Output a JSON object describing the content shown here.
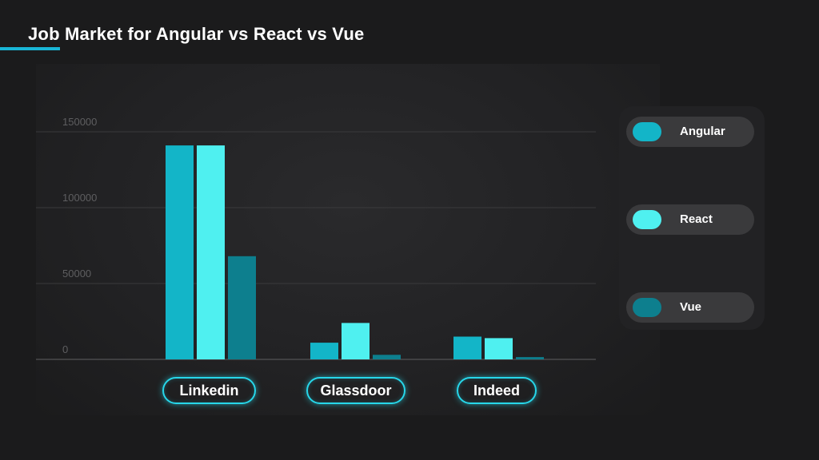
{
  "header": {
    "title": "Job Market for Angular vs React vs Vue"
  },
  "colors": {
    "accent": "#19b6d6",
    "angular": "#13b5c8",
    "react": "#4ff0f0",
    "vue": "#0d7f8e",
    "pill_border": "#27d7ea"
  },
  "chart_data": {
    "type": "bar",
    "title": "Job Market for Angular vs React vs Vue",
    "categories": [
      "Linkedin",
      "Glassdoor",
      "Indeed"
    ],
    "series": [
      {
        "name": "Angular",
        "values": [
          141000,
          11000,
          15000
        ]
      },
      {
        "name": "React",
        "values": [
          141000,
          24000,
          14000
        ]
      },
      {
        "name": "Vue",
        "values": [
          68000,
          3000,
          1500
        ]
      }
    ],
    "yticks": [
      "0",
      "50000",
      "100000",
      "150000"
    ],
    "ylim": [
      0,
      150000
    ],
    "grid": true,
    "legend_position": "right"
  }
}
